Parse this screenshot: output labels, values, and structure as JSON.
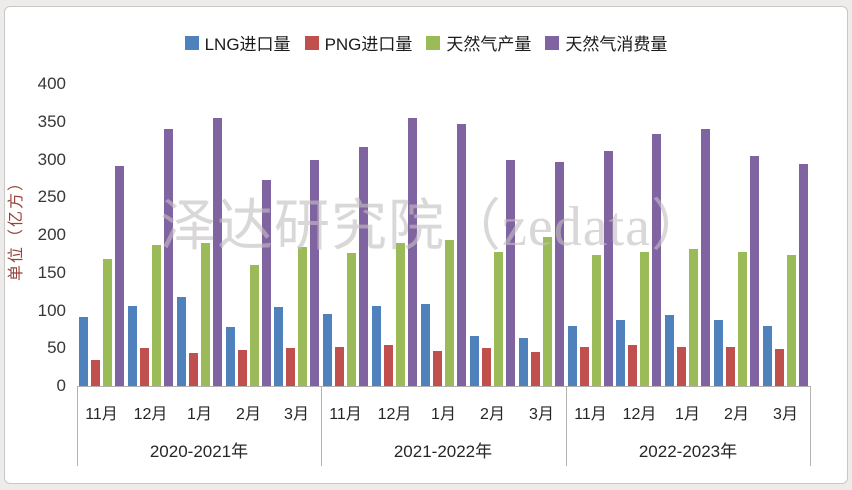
{
  "watermark": "泽达研究院（zedata）",
  "chart_data": {
    "type": "bar",
    "title": "",
    "xlabel": "",
    "ylabel": "单位（亿方）",
    "ylim": [
      0,
      400
    ],
    "ytick_step": 50,
    "grid": false,
    "legend_position": "top-center",
    "group_labels": [
      "2020-2021年",
      "2021-2022年",
      "2022-2023年"
    ],
    "month_labels": [
      "11月",
      "12月",
      "1月",
      "2月",
      "3月"
    ],
    "series": [
      {
        "name": "LNG进口量",
        "color": "#4F81BD",
        "values": [
          92,
          106,
          118,
          78,
          105,
          96,
          106,
          109,
          66,
          64,
          79,
          87,
          94,
          87,
          79
        ]
      },
      {
        "name": "PNG进口量",
        "color": "#C0504D",
        "values": [
          34,
          50,
          44,
          48,
          50,
          51,
          54,
          47,
          50,
          45,
          52,
          54,
          52,
          51,
          49
        ]
      },
      {
        "name": "天然气产量",
        "color": "#9BBB59",
        "values": [
          168,
          187,
          190,
          160,
          184,
          176,
          190,
          193,
          178,
          197,
          173,
          177,
          181,
          177,
          174
        ]
      },
      {
        "name": "天然气消费量",
        "color": "#8064A2",
        "values": [
          291,
          341,
          355,
          273,
          299,
          317,
          355,
          347,
          299,
          297,
          311,
          334,
          340,
          304,
          294
        ]
      }
    ],
    "ylabel_color": "#97423a"
  }
}
